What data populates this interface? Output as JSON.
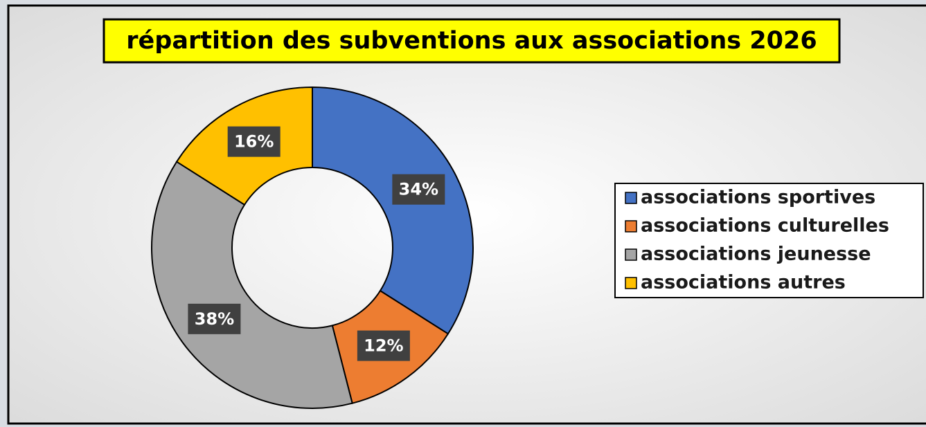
{
  "chart_data": {
    "type": "donut",
    "title": "répartition des subventions aux associations 2026",
    "categories": [
      "associations sportives",
      "associations culturelles",
      "associations jeunesse",
      "associations autres"
    ],
    "values": [
      34,
      12,
      38,
      16
    ],
    "value_labels": [
      "34%",
      "12%",
      "38%",
      "16%"
    ],
    "colors": [
      "#4472c4",
      "#ed7d31",
      "#a5a5a5",
      "#ffc000"
    ],
    "legend": "right"
  }
}
